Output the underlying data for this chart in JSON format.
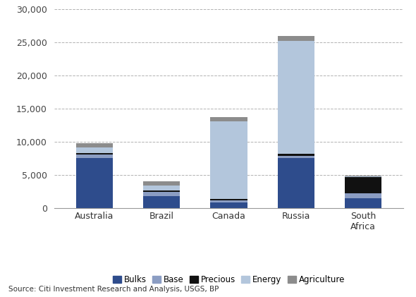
{
  "categories": [
    "Australia",
    "Brazil",
    "Canada",
    "Russia",
    "South\nAfrica"
  ],
  "series": {
    "Bulks": [
      7500,
      1800,
      800,
      7500,
      1500
    ],
    "Base": [
      500,
      600,
      300,
      300,
      700
    ],
    "Precious": [
      300,
      200,
      300,
      400,
      2500
    ],
    "Energy": [
      800,
      800,
      11600,
      17000,
      100
    ],
    "Agriculture": [
      600,
      600,
      700,
      700,
      100
    ]
  },
  "colors": {
    "Bulks": "#2E4C8C",
    "Base": "#8B9DC3",
    "Precious": "#111111",
    "Energy": "#B3C6DC",
    "Agriculture": "#8C8C8C"
  },
  "ylim": [
    0,
    30000
  ],
  "yticks": [
    0,
    5000,
    10000,
    15000,
    20000,
    25000,
    30000
  ],
  "source_text": "Source: Citi Investment Research and Analysis, USGS, BP",
  "background_color": "#FFFFFF",
  "grid_color": "#AAAAAA",
  "bar_width": 0.55
}
